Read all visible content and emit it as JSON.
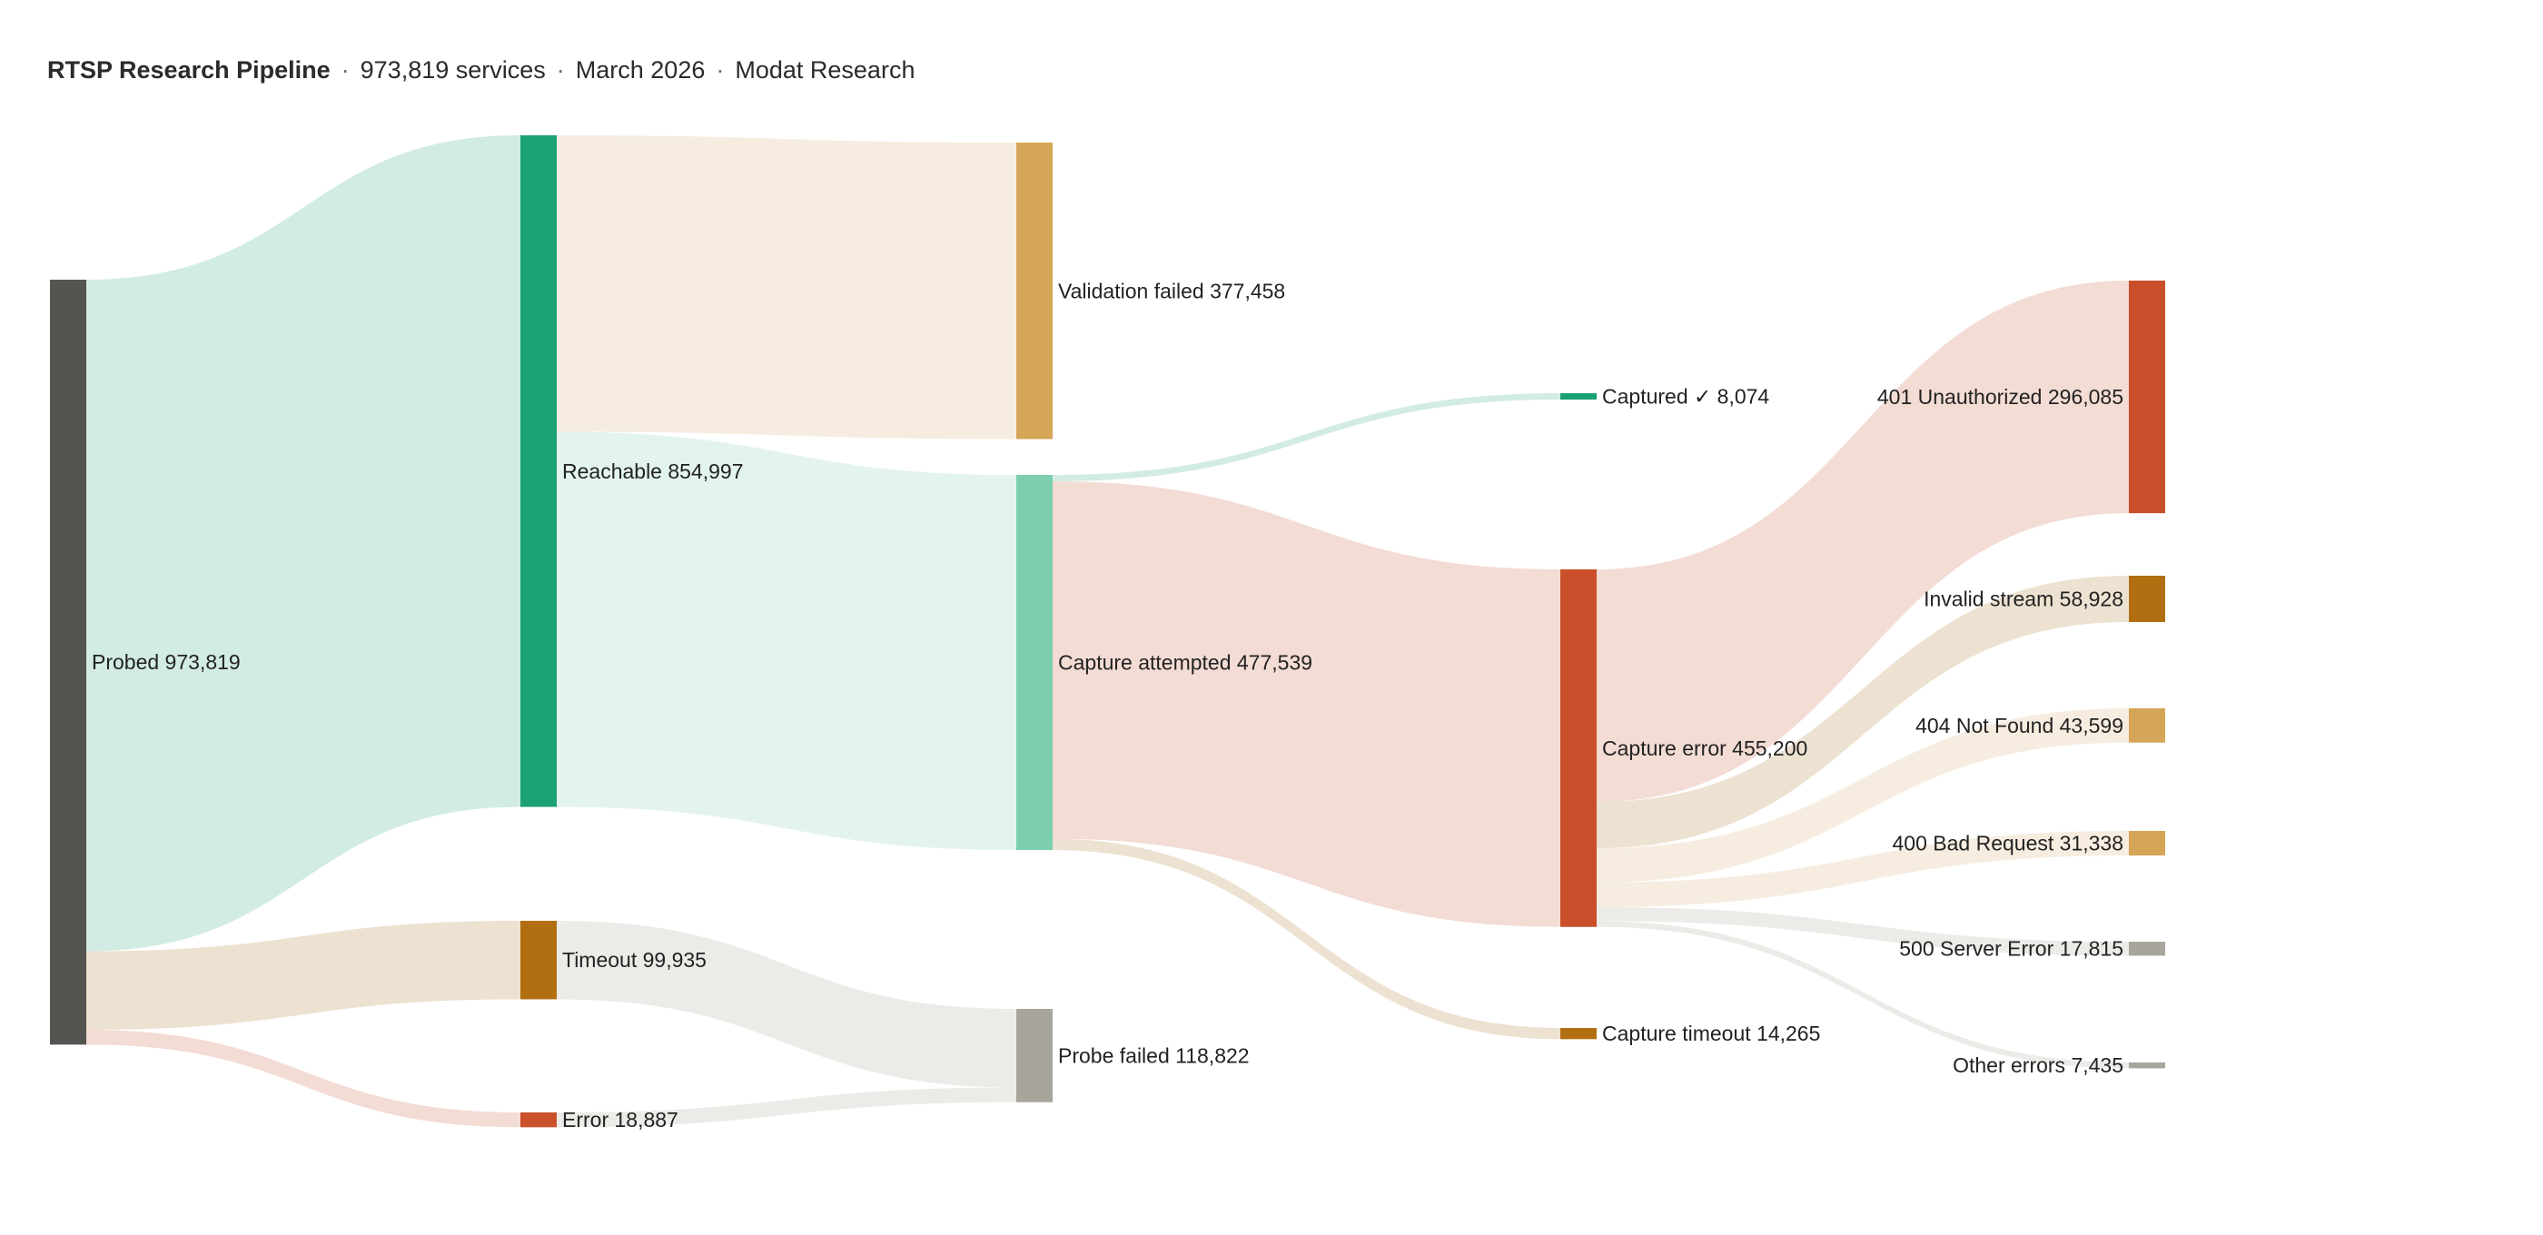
{
  "header": {
    "title": "RTSP Research Pipeline",
    "separator": "·",
    "services": "973,819 services",
    "date": "March 2026",
    "org": "Modat Research"
  },
  "chart_data": {
    "type": "sankey",
    "title": "RTSP Research Pipeline",
    "nodes": [
      {
        "id": "probed",
        "label": "Probed",
        "value": 973819,
        "display": "973,819",
        "column": 0,
        "color": "#545450",
        "label_side": "right"
      },
      {
        "id": "reachable",
        "label": "Reachable",
        "value": 854997,
        "display": "854,997",
        "column": 1,
        "color": "#1ba173",
        "label_side": "right"
      },
      {
        "id": "timeout",
        "label": "Timeout",
        "value": 99935,
        "display": "99,935",
        "column": 1,
        "color": "#b26f12",
        "label_side": "right"
      },
      {
        "id": "error",
        "label": "Error",
        "value": 18887,
        "display": "18,887",
        "column": 1,
        "color": "#c9502a",
        "label_side": "right"
      },
      {
        "id": "validation_failed",
        "label": "Validation failed",
        "value": 377458,
        "display": "377,458",
        "column": 2,
        "color": "#d5a657",
        "label_side": "right"
      },
      {
        "id": "capture_attempted",
        "label": "Capture attempted",
        "value": 477539,
        "display": "477,539",
        "column": 2,
        "color": "#7bcfae",
        "label_side": "right"
      },
      {
        "id": "probe_failed",
        "label": "Probe failed",
        "value": 118822,
        "display": "118,822",
        "column": 2,
        "color": "#a8a69c",
        "label_side": "right"
      },
      {
        "id": "captured",
        "label": "Captured ✓",
        "value": 8074,
        "display": "8,074",
        "column": 3,
        "color": "#1ba173",
        "label_side": "right"
      },
      {
        "id": "capture_error",
        "label": "Capture error",
        "value": 455200,
        "display": "455,200",
        "column": 3,
        "color": "#c9502a",
        "label_side": "right"
      },
      {
        "id": "capture_timeout",
        "label": "Capture timeout",
        "value": 14265,
        "display": "14,265",
        "column": 3,
        "color": "#b26f12",
        "label_side": "right"
      },
      {
        "id": "e401",
        "label": "401 Unauthorized",
        "value": 296085,
        "display": "296,085",
        "column": 4,
        "color": "#c9502a",
        "label_side": "left"
      },
      {
        "id": "invalid_stream",
        "label": "Invalid stream",
        "value": 58928,
        "display": "58,928",
        "column": 4,
        "color": "#b26f12",
        "label_side": "left"
      },
      {
        "id": "e404",
        "label": "404 Not Found",
        "value": 43599,
        "display": "43,599",
        "column": 4,
        "color": "#d5a657",
        "label_side": "left"
      },
      {
        "id": "e400",
        "label": "400 Bad Request",
        "value": 31338,
        "display": "31,338",
        "column": 4,
        "color": "#d5a657",
        "label_side": "left"
      },
      {
        "id": "e500",
        "label": "500 Server Error",
        "value": 17815,
        "display": "17,815",
        "column": 4,
        "color": "#a8a69c",
        "label_side": "left"
      },
      {
        "id": "other_errors",
        "label": "Other errors",
        "value": 7435,
        "display": "7,435",
        "column": 4,
        "color": "#a8a69c",
        "label_side": "left"
      }
    ],
    "links": [
      {
        "source": "probed",
        "target": "reachable",
        "value": 854997,
        "color": "#d2ece3"
      },
      {
        "source": "probed",
        "target": "timeout",
        "value": 99935,
        "color": "#ede2d1"
      },
      {
        "source": "probed",
        "target": "error",
        "value": 18887,
        "color": "#f3dcd4"
      },
      {
        "source": "reachable",
        "target": "validation_failed",
        "value": 377458,
        "color": "#f6ede0"
      },
      {
        "source": "reachable",
        "target": "capture_attempted",
        "value": 477539,
        "color": "#e3f4ec"
      },
      {
        "source": "timeout",
        "target": "probe_failed",
        "value": 99935,
        "color": "#ecebe8"
      },
      {
        "source": "error",
        "target": "probe_failed",
        "value": 18887,
        "color": "#ecebe8"
      },
      {
        "source": "capture_attempted",
        "target": "captured",
        "value": 8074,
        "color": "#d2ece3"
      },
      {
        "source": "capture_attempted",
        "target": "capture_error",
        "value": 455200,
        "color": "#f3dcd4"
      },
      {
        "source": "capture_attempted",
        "target": "capture_timeout",
        "value": 14265,
        "color": "#ede2d1"
      },
      {
        "source": "capture_error",
        "target": "e401",
        "value": 296085,
        "color": "#f3dcd4"
      },
      {
        "source": "capture_error",
        "target": "invalid_stream",
        "value": 58928,
        "color": "#ede2d1"
      },
      {
        "source": "capture_error",
        "target": "e404",
        "value": 43599,
        "color": "#f6ede0"
      },
      {
        "source": "capture_error",
        "target": "e400",
        "value": 31338,
        "color": "#f6ede0"
      },
      {
        "source": "capture_error",
        "target": "e500",
        "value": 17815,
        "color": "#ecebe8"
      },
      {
        "source": "capture_error",
        "target": "other_errors",
        "value": 7435,
        "color": "#ecebe8"
      }
    ]
  }
}
